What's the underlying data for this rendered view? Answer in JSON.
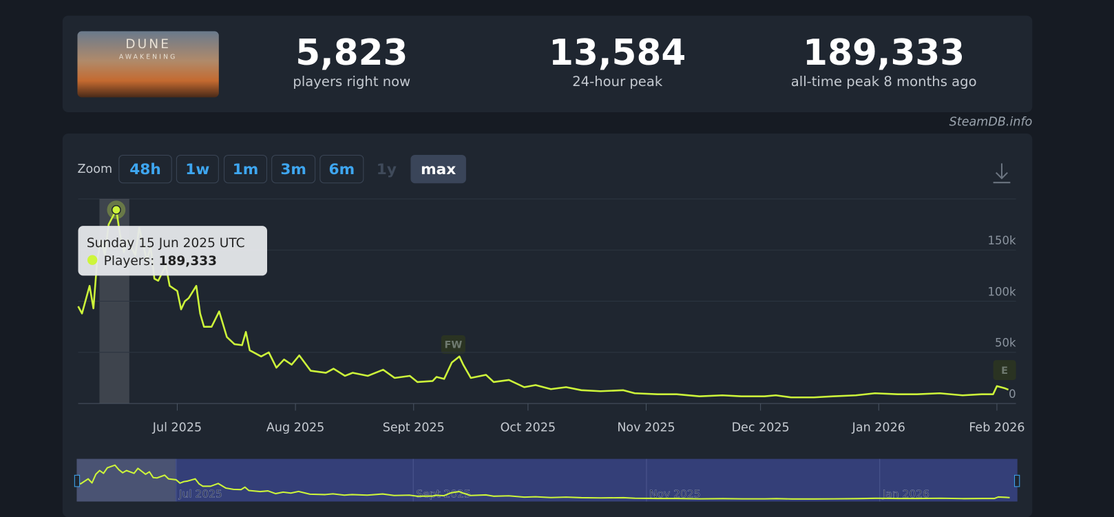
{
  "header": {
    "image_text": [
      "DUNE",
      "AWAKENING"
    ],
    "stats": [
      {
        "value": "5,823",
        "label": "players right now"
      },
      {
        "value": "13,584",
        "label": "24-hour peak"
      },
      {
        "value": "189,333",
        "label": "all-time peak 8 months ago"
      }
    ],
    "credit": "SteamDB.info"
  },
  "zoom": {
    "label": "Zoom",
    "options": [
      "48h",
      "1w",
      "1m",
      "3m",
      "6m",
      "1y",
      "max"
    ],
    "active": 6,
    "disabled": 5
  },
  "chart_data": {
    "type": "line",
    "series": [
      {
        "name": "Players",
        "color": "#cdf53a",
        "x": [
          0,
          1,
          3,
          4,
          5,
          6,
          7,
          8,
          10,
          11,
          12,
          13,
          15,
          16,
          18,
          19,
          20,
          21,
          23,
          24,
          26,
          27,
          28,
          29,
          31,
          32,
          33,
          35,
          37,
          39,
          41,
          43,
          44,
          45,
          48,
          50,
          52,
          54,
          56,
          58,
          61,
          65,
          67,
          70,
          72,
          76,
          80,
          83,
          87,
          89,
          93,
          94,
          96,
          98,
          100,
          101,
          103,
          107,
          109,
          113,
          117,
          120,
          124,
          128,
          132,
          137,
          143,
          146,
          152,
          157,
          163,
          169,
          174,
          180,
          183,
          187,
          193,
          198,
          204,
          209,
          215,
          220,
          226,
          232,
          237,
          240,
          241,
          243,
          244
        ],
        "values": [
          95000,
          88000,
          115000,
          93000,
          140000,
          160000,
          145000,
          175000,
          189333,
          165000,
          148000,
          160000,
          145000,
          172000,
          140000,
          153000,
          122000,
          120000,
          135000,
          115000,
          110000,
          92000,
          100000,
          103000,
          115000,
          88000,
          75000,
          75000,
          90000,
          65000,
          58000,
          57000,
          70000,
          52000,
          46000,
          50000,
          35000,
          43000,
          38000,
          47000,
          32000,
          30000,
          34000,
          27000,
          30000,
          27000,
          33000,
          25000,
          27000,
          21000,
          22000,
          26000,
          24000,
          40000,
          46000,
          38000,
          25000,
          28000,
          21000,
          23000,
          16000,
          18000,
          14000,
          16000,
          13000,
          12000,
          13000,
          10000,
          9000,
          9000,
          7000,
          8000,
          7000,
          7000,
          8000,
          6000,
          6000,
          7000,
          8000,
          10000,
          9000,
          9000,
          10000,
          8000,
          9000,
          9000,
          17000,
          15000,
          13500
        ]
      }
    ],
    "xlim": [
      0,
      246
    ],
    "xticks": [
      {
        "value": 26,
        "label": "Jul 2025"
      },
      {
        "value": 57,
        "label": "Aug 2025"
      },
      {
        "value": 88,
        "label": "Sept 2025"
      },
      {
        "value": 118,
        "label": "Oct 2025"
      },
      {
        "value": 149,
        "label": "Nov 2025"
      },
      {
        "value": 179,
        "label": "Dec 2025"
      },
      {
        "value": 210,
        "label": "Jan 2026"
      },
      {
        "value": 241,
        "label": "Feb 2026"
      }
    ],
    "ylim": [
      0,
      200000
    ],
    "yticks": [
      0,
      {
        "value": 50000,
        "label": "50k"
      },
      {
        "value": 100000,
        "label": "100k"
      },
      {
        "value": 150000,
        "label": "150k"
      }
    ],
    "grid": true,
    "annotations": [
      "FW",
      "E"
    ],
    "tooltip": {
      "date": "Sunday 15 Jun 2025 UTC",
      "label": "Players:",
      "value": "189,333",
      "point": 8
    },
    "navigator_ticks": [
      {
        "value": 26,
        "label": "Jul 2025"
      },
      {
        "value": 88,
        "label": "Sept 2025"
      },
      {
        "value": 149,
        "label": "Nov 2025"
      },
      {
        "value": 210,
        "label": "Jan 2026"
      }
    ]
  }
}
